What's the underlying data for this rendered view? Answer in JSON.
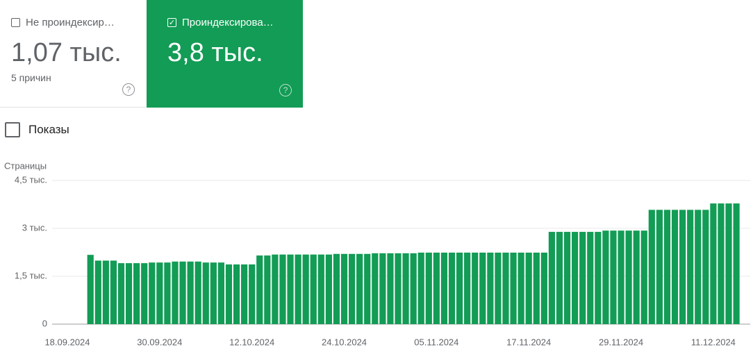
{
  "cards": [
    {
      "label": "Не проиндексир…",
      "value": "1,07 тыс.",
      "note": "5 причин"
    },
    {
      "label": "Проиндексирова…",
      "value": "3,8 тыс."
    }
  ],
  "toggle_label": "Показы",
  "chart_data": {
    "type": "bar",
    "y_label": "Страницы",
    "color": "#129c55",
    "grid": true,
    "ylim": [
      0,
      4500
    ],
    "yticks": [
      0,
      {
        "value": 1500,
        "label": "1,5 тыс."
      },
      {
        "value": 3000,
        "label": "3 тыс."
      },
      {
        "value": 4500,
        "label": "4,5 тыс."
      }
    ],
    "categories": [
      "18.09.2024",
      null,
      null,
      null,
      null,
      null,
      null,
      null,
      null,
      null,
      null,
      null,
      "30.09.2024",
      null,
      null,
      null,
      null,
      null,
      null,
      null,
      null,
      null,
      null,
      null,
      "12.10.2024",
      null,
      null,
      null,
      null,
      null,
      null,
      null,
      null,
      null,
      null,
      null,
      "24.10.2024",
      null,
      null,
      null,
      null,
      null,
      null,
      null,
      null,
      null,
      null,
      null,
      "05.11.2024",
      null,
      null,
      null,
      null,
      null,
      null,
      null,
      null,
      null,
      null,
      null,
      "17.11.2024",
      null,
      null,
      null,
      null,
      null,
      null,
      null,
      null,
      null,
      null,
      null,
      "29.11.2024",
      null,
      null,
      null,
      null,
      null,
      null,
      null,
      null,
      null,
      null,
      null,
      "11.12.2024",
      null,
      null,
      null
    ],
    "values": [
      null,
      null,
      null,
      2170,
      1990,
      1990,
      1990,
      1910,
      1910,
      1910,
      1910,
      1930,
      1930,
      1930,
      1960,
      1960,
      1960,
      1960,
      1930,
      1930,
      1930,
      1870,
      1870,
      1870,
      1870,
      2150,
      2150,
      2180,
      2180,
      2180,
      2180,
      2180,
      2180,
      2180,
      2180,
      2200,
      2200,
      2200,
      2200,
      2200,
      2220,
      2220,
      2220,
      2220,
      2220,
      2220,
      2240,
      2240,
      2240,
      2240,
      2240,
      2240,
      2240,
      2240,
      2240,
      2240,
      2240,
      2240,
      2240,
      2240,
      2240,
      2240,
      2240,
      2890,
      2890,
      2890,
      2890,
      2890,
      2890,
      2890,
      2930,
      2930,
      2930,
      2930,
      2930,
      2930,
      3580,
      3580,
      3580,
      3580,
      3580,
      3580,
      3580,
      3580,
      3780,
      3780,
      3780,
      3780
    ]
  }
}
